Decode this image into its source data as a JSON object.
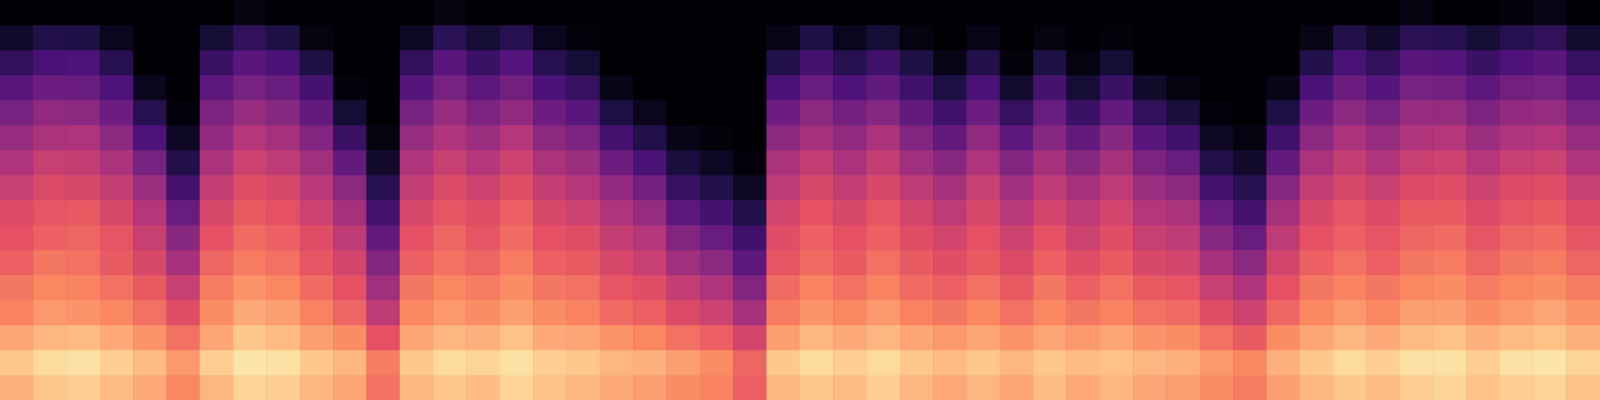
{
  "chart_data": {
    "type": "heatmap",
    "tick_labels": false,
    "grid": false,
    "zlim": [
      -80,
      0
    ],
    "cells": [
      [
        -13,
        -9,
        -15,
        -21,
        -23,
        -27,
        -30,
        -32,
        -36,
        -41,
        -46,
        -52,
        -58,
        -66,
        -74,
        -80
      ],
      [
        -9,
        -6,
        -12,
        -17,
        -20,
        -23,
        -27,
        -29,
        -32,
        -36,
        -42,
        -47,
        -54,
        -61,
        -69,
        -80
      ],
      [
        -8,
        -5,
        -11,
        -18,
        -21,
        -24,
        -26,
        -28,
        -33,
        -37,
        -41,
        -48,
        -55,
        -60,
        -70,
        -80
      ],
      [
        -11,
        -8,
        -14,
        -20,
        -24,
        -28,
        -29,
        -33,
        -37,
        -42,
        -48,
        -54,
        -60,
        -68,
        -76,
        -80
      ],
      [
        -14,
        -11,
        -18,
        -24,
        -28,
        -33,
        -36,
        -40,
        -45,
        -52,
        -60,
        -68,
        -76,
        -80,
        -80,
        -80
      ],
      [
        -20,
        -17,
        -24,
        -31,
        -36,
        -43,
        -49,
        -55,
        -62,
        -69,
        -75,
        -79,
        -80,
        -80,
        -80,
        -80
      ],
      [
        -12,
        -8,
        -15,
        -19,
        -22,
        -26,
        -30,
        -33,
        -37,
        -42,
        -47,
        -51,
        -57,
        -64,
        -72,
        -80
      ],
      [
        -7,
        -4,
        -9,
        -14,
        -18,
        -22,
        -25,
        -28,
        -31,
        -35,
        -40,
        -46,
        -52,
        -58,
        -66,
        -78
      ],
      [
        -8,
        -5,
        -11,
        -16,
        -20,
        -24,
        -27,
        -30,
        -33,
        -38,
        -43,
        -49,
        -55,
        -61,
        -70,
        -80
      ],
      [
        -12,
        -9,
        -16,
        -21,
        -25,
        -29,
        -31,
        -35,
        -39,
        -44,
        -50,
        -56,
        -62,
        -70,
        -78,
        -80
      ],
      [
        -15,
        -12,
        -19,
        -26,
        -30,
        -34,
        -38,
        -43,
        -48,
        -56,
        -64,
        -72,
        -79,
        -80,
        -80,
        -80
      ],
      [
        -24,
        -22,
        -30,
        -38,
        -44,
        -50,
        -56,
        -62,
        -68,
        -74,
        -78,
        -80,
        -80,
        -80,
        -80,
        -80
      ],
      [
        -12,
        -9,
        -15,
        -20,
        -23,
        -27,
        -30,
        -33,
        -37,
        -41,
        -46,
        -52,
        -59,
        -66,
        -75,
        -80
      ],
      [
        -9,
        -6,
        -12,
        -17,
        -20,
        -24,
        -26,
        -29,
        -32,
        -36,
        -41,
        -46,
        -52,
        -58,
        -67,
        -78
      ],
      [
        -11,
        -7,
        -13,
        -19,
        -22,
        -26,
        -29,
        -31,
        -35,
        -40,
        -45,
        -51,
        -57,
        -64,
        -72,
        -80
      ],
      [
        -7,
        -5,
        -10,
        -16,
        -19,
        -22,
        -25,
        -27,
        -31,
        -35,
        -40,
        -47,
        -53,
        -59,
        -68,
        -80
      ],
      [
        -10,
        -8,
        -14,
        -19,
        -23,
        -27,
        -30,
        -33,
        -37,
        -42,
        -48,
        -54,
        -61,
        -68,
        -76,
        -80
      ],
      [
        -12,
        -9,
        -15,
        -21,
        -24,
        -28,
        -31,
        -35,
        -40,
        -45,
        -51,
        -58,
        -65,
        -72,
        -79,
        -80
      ],
      [
        -14,
        -12,
        -18,
        -25,
        -29,
        -33,
        -37,
        -41,
        -47,
        -54,
        -62,
        -70,
        -77,
        -80,
        -80,
        -80
      ],
      [
        -16,
        -13,
        -20,
        -27,
        -31,
        -36,
        -40,
        -46,
        -53,
        -61,
        -69,
        -76,
        -80,
        -80,
        -80,
        -80
      ],
      [
        -19,
        -16,
        -24,
        -32,
        -37,
        -44,
        -50,
        -57,
        -64,
        -71,
        -77,
        -80,
        -80,
        -80,
        -80,
        -80
      ],
      [
        -21,
        -19,
        -27,
        -35,
        -41,
        -48,
        -55,
        -62,
        -69,
        -75,
        -79,
        -80,
        -80,
        -80,
        -80,
        -80
      ],
      [
        -27,
        -26,
        -34,
        -43,
        -50,
        -57,
        -63,
        -69,
        -75,
        -79,
        -80,
        -80,
        -80,
        -80,
        -80,
        -80
      ],
      [
        -12,
        -9,
        -16,
        -22,
        -25,
        -29,
        -31,
        -34,
        -38,
        -42,
        -48,
        -54,
        -61,
        -69,
        -77,
        -80
      ],
      [
        -9,
        -6,
        -12,
        -18,
        -21,
        -25,
        -27,
        -30,
        -33,
        -37,
        -43,
        -48,
        -55,
        -62,
        -70,
        -80
      ],
      [
        -11,
        -8,
        -14,
        -20,
        -24,
        -28,
        -30,
        -33,
        -37,
        -42,
        -47,
        -53,
        -60,
        -68,
        -76,
        -80
      ],
      [
        -8,
        -6,
        -12,
        -17,
        -21,
        -24,
        -27,
        -29,
        -33,
        -37,
        -42,
        -49,
        -56,
        -63,
        -72,
        -80
      ],
      [
        -12,
        -9,
        -15,
        -21,
        -25,
        -28,
        -31,
        -34,
        -38,
        -44,
        -50,
        -56,
        -63,
        -70,
        -78,
        -80
      ],
      [
        -14,
        -11,
        -17,
        -23,
        -27,
        -31,
        -34,
        -38,
        -43,
        -49,
        -56,
        -63,
        -70,
        -77,
        -80,
        -80
      ],
      [
        -12,
        -9,
        -15,
        -20,
        -24,
        -28,
        -30,
        -33,
        -36,
        -41,
        -47,
        -54,
        -61,
        -69,
        -77,
        -80
      ],
      [
        -15,
        -12,
        -18,
        -24,
        -28,
        -32,
        -35,
        -39,
        -44,
        -50,
        -57,
        -65,
        -73,
        -79,
        -80,
        -80
      ],
      [
        -11,
        -9,
        -15,
        -20,
        -23,
        -27,
        -30,
        -34,
        -38,
        -43,
        -49,
        -55,
        -62,
        -70,
        -78,
        -80
      ],
      [
        -14,
        -11,
        -17,
        -23,
        -27,
        -31,
        -35,
        -38,
        -43,
        -49,
        -56,
        -64,
        -72,
        -78,
        -80,
        -80
      ],
      [
        -12,
        -10,
        -15,
        -21,
        -24,
        -28,
        -31,
        -34,
        -38,
        -43,
        -49,
        -56,
        -64,
        -72,
        -79,
        -80
      ],
      [
        -15,
        -12,
        -18,
        -24,
        -28,
        -33,
        -36,
        -40,
        -45,
        -51,
        -58,
        -66,
        -74,
        -80,
        -80,
        -80
      ],
      [
        -16,
        -13,
        -19,
        -25,
        -29,
        -34,
        -38,
        -42,
        -48,
        -55,
        -63,
        -71,
        -78,
        -80,
        -80,
        -80
      ],
      [
        -19,
        -17,
        -24,
        -31,
        -36,
        -43,
        -49,
        -55,
        -62,
        -69,
        -75,
        -79,
        -80,
        -80,
        -80,
        -80
      ],
      [
        -22,
        -20,
        -28,
        -35,
        -41,
        -48,
        -55,
        -62,
        -68,
        -74,
        -78,
        -80,
        -80,
        -80,
        -80,
        -80
      ],
      [
        -16,
        -13,
        -19,
        -26,
        -30,
        -34,
        -38,
        -43,
        -49,
        -56,
        -63,
        -70,
        -77,
        -80,
        -80,
        -80
      ],
      [
        -12,
        -9,
        -15,
        -20,
        -23,
        -27,
        -30,
        -33,
        -37,
        -42,
        -48,
        -54,
        -61,
        -69,
        -77,
        -80
      ],
      [
        -9,
        -6,
        -12,
        -17,
        -21,
        -24,
        -27,
        -29,
        -33,
        -37,
        -42,
        -48,
        -54,
        -61,
        -69,
        -80
      ],
      [
        -11,
        -8,
        -14,
        -20,
        -23,
        -27,
        -29,
        -32,
        -36,
        -41,
        -46,
        -52,
        -59,
        -66,
        -74,
        -80
      ],
      [
        -8,
        -5,
        -11,
        -16,
        -20,
        -23,
        -26,
        -28,
        -32,
        -36,
        -41,
        -46,
        -52,
        -58,
        -67,
        -78
      ],
      [
        -7,
        -5,
        -10,
        -16,
        -19,
        -22,
        -25,
        -28,
        -31,
        -35,
        -40,
        -46,
        -53,
        -59,
        -68,
        -80
      ],
      [
        -10,
        -8,
        -13,
        -19,
        -22,
        -26,
        -29,
        -32,
        -35,
        -40,
        -45,
        -51,
        -57,
        -64,
        -72,
        -80
      ],
      [
        -8,
        -5,
        -11,
        -17,
        -20,
        -23,
        -26,
        -29,
        -32,
        -36,
        -41,
        -47,
        -53,
        -60,
        -68,
        -79
      ],
      [
        -7,
        -4,
        -10,
        -15,
        -19,
        -22,
        -25,
        -28,
        -31,
        -35,
        -40,
        -46,
        -52,
        -58,
        -66,
        -77
      ],
      [
        -10,
        -7,
        -13,
        -18,
        -22,
        -26,
        -29,
        -32,
        -36,
        -41,
        -46,
        -52,
        -58,
        -65,
        -73,
        -80
      ]
    ]
  }
}
